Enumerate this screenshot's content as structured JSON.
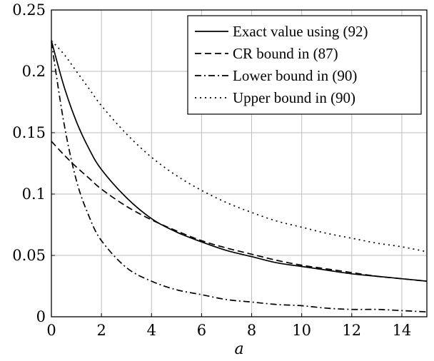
{
  "chart_data": {
    "type": "line",
    "title": "",
    "xlabel": "a",
    "ylabel": "",
    "xlim": [
      0,
      15
    ],
    "ylim": [
      0,
      0.25
    ],
    "grid": true,
    "legend_position": "top-right",
    "x_ticks": [
      0,
      2,
      4,
      6,
      8,
      10,
      12,
      14
    ],
    "x_tick_labels": [
      "0",
      "2",
      "4",
      "6",
      "8",
      "10",
      "12",
      "14"
    ],
    "y_ticks": [
      0,
      0.05,
      0.1,
      0.15,
      0.2,
      0.25
    ],
    "y_tick_labels": [
      "0",
      "0.05",
      "0.1",
      "0.15",
      "0.2",
      "0.25"
    ],
    "x": [
      0,
      0.5,
      1,
      1.5,
      2,
      3,
      4,
      5,
      6,
      7,
      8,
      9,
      10,
      11,
      12,
      13,
      14,
      15
    ],
    "series": [
      {
        "name": "Exact value using (92)",
        "dash": "solid",
        "values": [
          0.225,
          0.188,
          0.159,
          0.137,
          0.12,
          0.097,
          0.08,
          0.069,
          0.061,
          0.054,
          0.049,
          0.044,
          0.041,
          0.038,
          0.035,
          0.033,
          0.031,
          0.029
        ]
      },
      {
        "name": "CR bound in (87)",
        "dash": "dashed",
        "values": [
          0.143,
          0.132,
          0.122,
          0.113,
          0.104,
          0.09,
          0.079,
          0.07,
          0.062,
          0.056,
          0.051,
          0.046,
          0.042,
          0.039,
          0.036,
          0.033,
          0.031,
          0.029
        ]
      },
      {
        "name": "Lower bound in (90)",
        "dash": "dashdot",
        "values": [
          0.224,
          0.158,
          0.111,
          0.082,
          0.062,
          0.04,
          0.029,
          0.022,
          0.018,
          0.014,
          0.012,
          0.01,
          0.009,
          0.007,
          0.006,
          0.006,
          0.005,
          0.004
        ]
      },
      {
        "name": "Upper bound in (90)",
        "dash": "dotted",
        "values": [
          0.225,
          0.214,
          0.2,
          0.186,
          0.172,
          0.149,
          0.13,
          0.115,
          0.103,
          0.093,
          0.085,
          0.078,
          0.073,
          0.068,
          0.064,
          0.06,
          0.057,
          0.053
        ]
      }
    ]
  }
}
